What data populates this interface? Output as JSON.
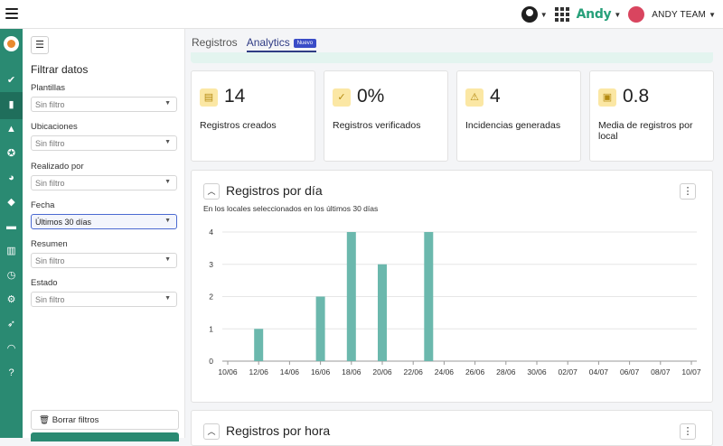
{
  "topbar": {
    "brand": "Andy",
    "team": "ANDY TEAM"
  },
  "filters": {
    "title": "Filtrar datos",
    "groups": [
      {
        "label": "Plantillas",
        "value": "Sin filtro"
      },
      {
        "label": "Ubicaciones",
        "value": "Sin filtro"
      },
      {
        "label": "Realizado por",
        "value": "Sin filtro"
      },
      {
        "label": "Fecha",
        "value": "Últimos 30 días"
      },
      {
        "label": "Resumen",
        "value": "Sin filtro"
      },
      {
        "label": "Estado",
        "value": "Sin filtro"
      }
    ],
    "clear_label": "Borrar filtros"
  },
  "tabs": [
    {
      "label": "Registros"
    },
    {
      "label": "Analytics",
      "badge": "Nuevo"
    }
  ],
  "stats": [
    {
      "value": "14",
      "label": "Registros creados",
      "icon": "clipboard-list-icon"
    },
    {
      "value": "0%",
      "label": "Registros verificados",
      "icon": "clipboard-check-icon"
    },
    {
      "value": "4",
      "label": "Incidencias generadas",
      "icon": "warning-icon"
    },
    {
      "value": "0.8",
      "label": "Media de registros por local",
      "icon": "store-icon"
    }
  ],
  "panel1": {
    "title": "Registros por día",
    "subtitle": "En los locales seleccionados en los últimos 30 días"
  },
  "panel2": {
    "title": "Registros por hora"
  },
  "colors": {
    "accent": "#2a8a72",
    "bar": "#6bb8ad"
  },
  "chart_data": {
    "type": "bar",
    "categories": [
      "10/06",
      "11/06",
      "12/06",
      "13/06",
      "14/06",
      "15/06",
      "16/06",
      "17/06",
      "18/06",
      "19/06",
      "20/06",
      "21/06",
      "22/06",
      "23/06",
      "24/06",
      "25/06",
      "26/06",
      "27/06",
      "28/06",
      "29/06",
      "30/06",
      "01/07",
      "02/07",
      "03/07",
      "04/07",
      "05/07",
      "06/07",
      "07/07",
      "08/07",
      "09/07",
      "10/07"
    ],
    "values": [
      0,
      0,
      1,
      0,
      0,
      0,
      2,
      0,
      4,
      0,
      3,
      0,
      0,
      4,
      0,
      0,
      0,
      0,
      0,
      0,
      0,
      0,
      0,
      0,
      0,
      0,
      0,
      0,
      0,
      0,
      0
    ],
    "tick_labels": [
      "10/06",
      "12/06",
      "14/06",
      "16/06",
      "18/06",
      "20/06",
      "22/06",
      "24/06",
      "26/06",
      "28/06",
      "30/06",
      "02/07",
      "04/07",
      "06/07",
      "08/07",
      "10/07"
    ],
    "y_ticks": [
      "0",
      "1",
      "2",
      "3",
      "4"
    ],
    "ylim": [
      0,
      4
    ],
    "grid": true
  }
}
